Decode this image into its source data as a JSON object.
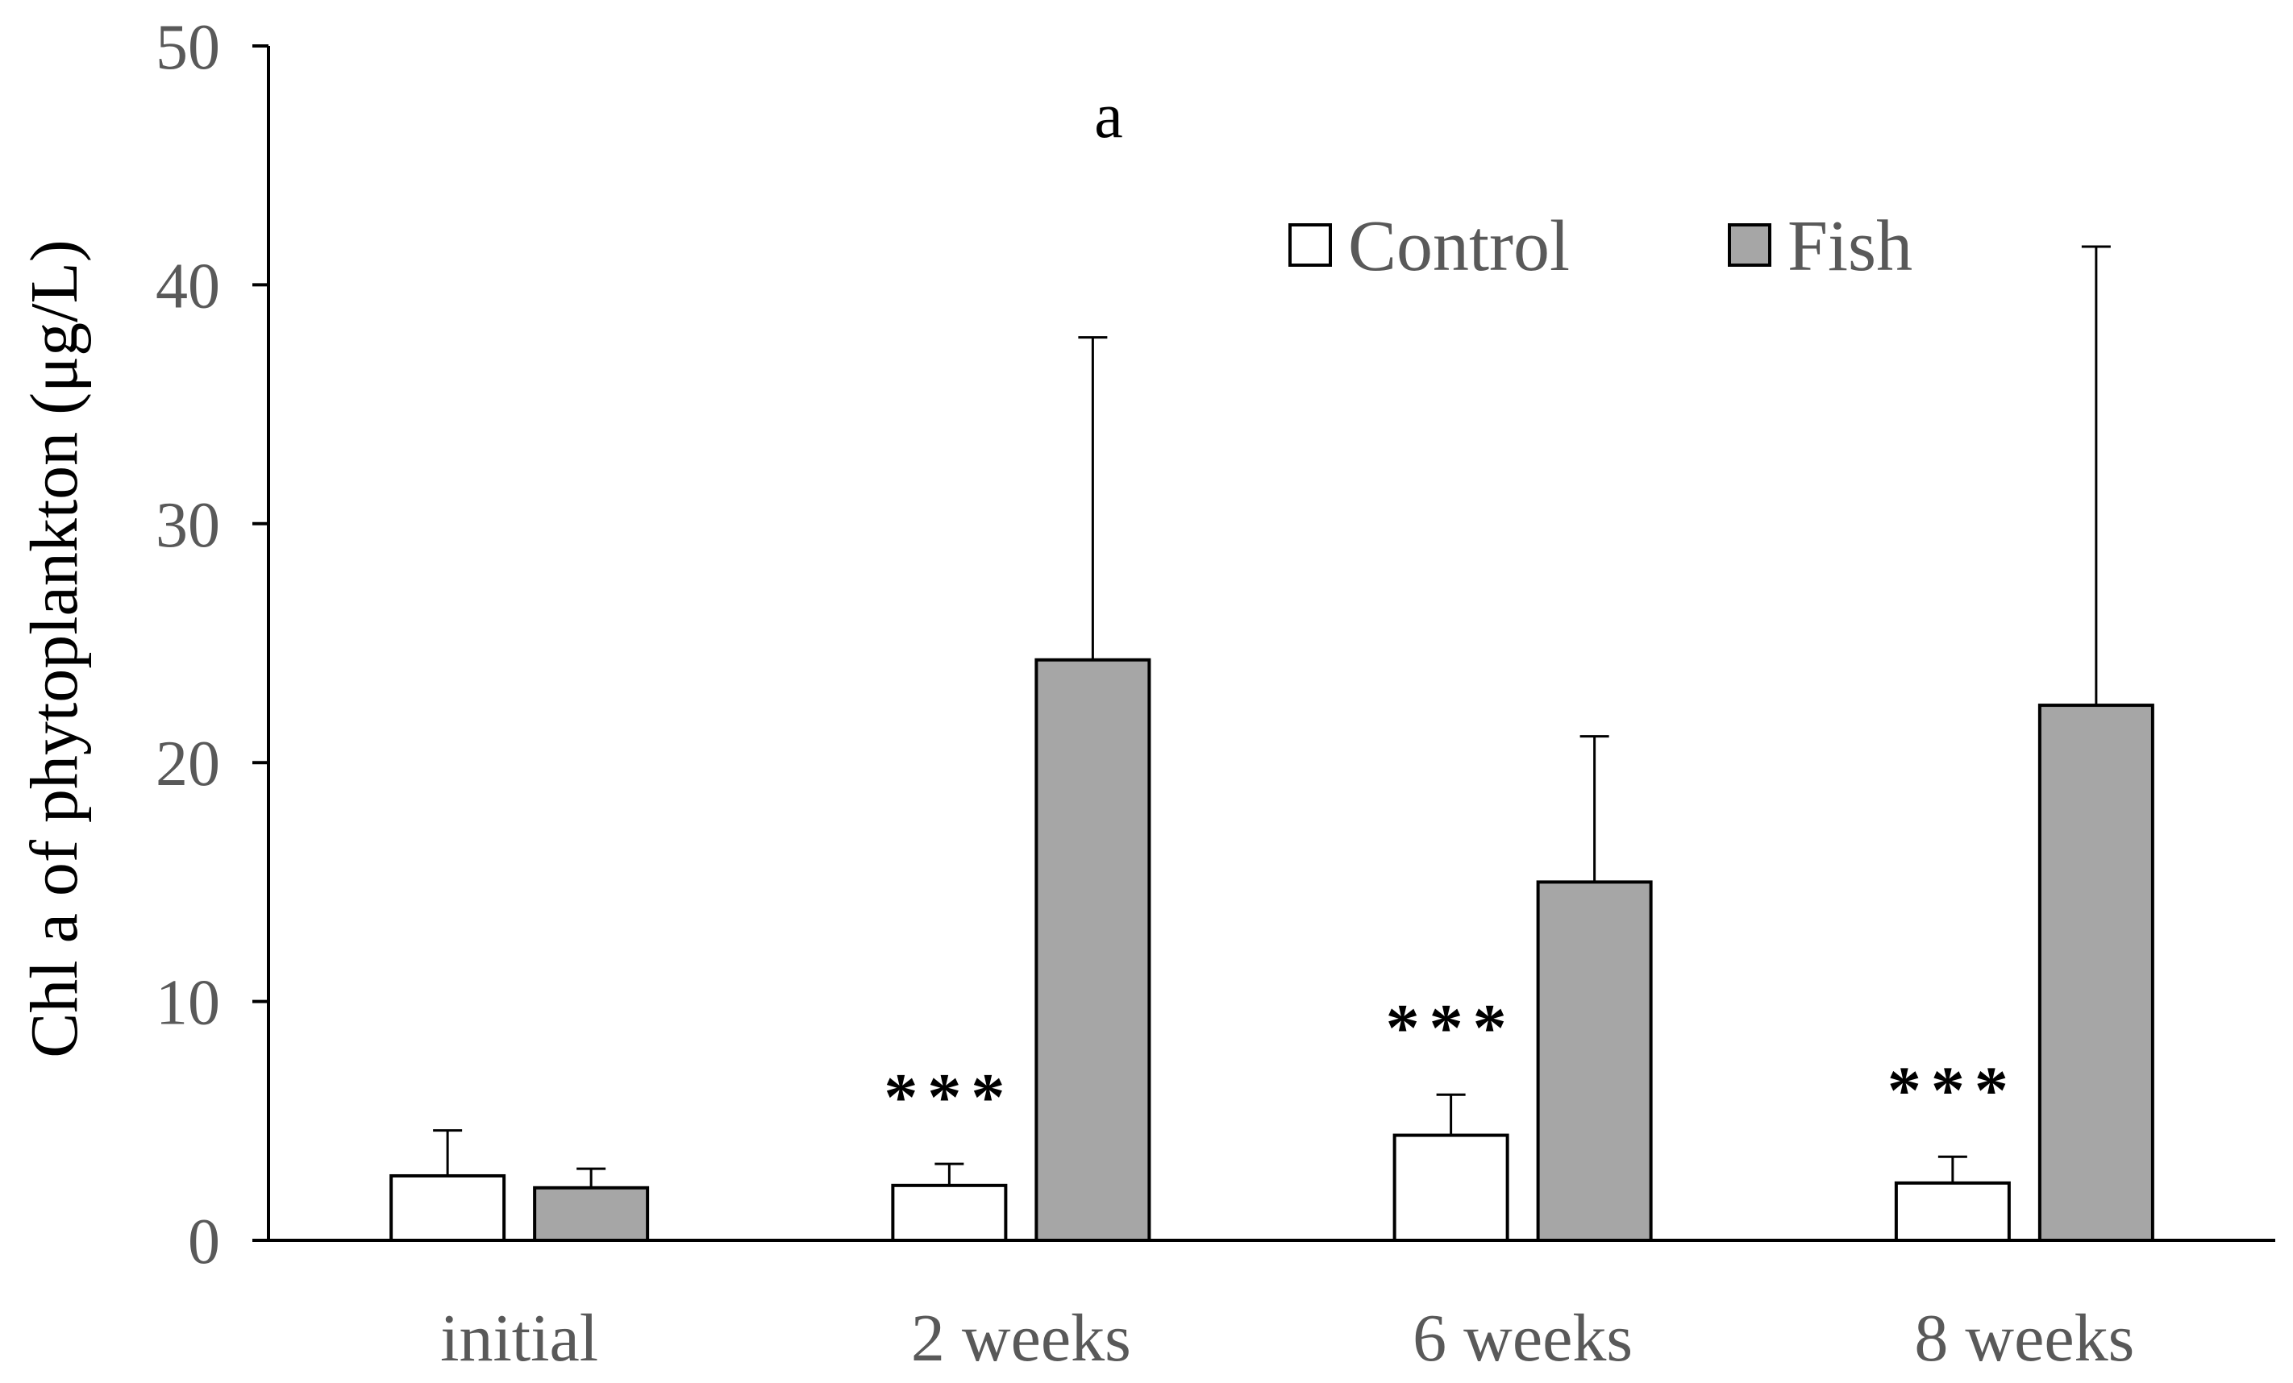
{
  "chart_data": {
    "type": "bar",
    "panel_label": "a",
    "ylabel": "Chl a of phytoplankton (μg/L)",
    "xlabel": "",
    "ylim": [
      0,
      50
    ],
    "yticks": [
      "0",
      "10",
      "20",
      "30",
      "40",
      "50"
    ],
    "ytick_values": [
      0,
      10,
      20,
      30,
      40,
      50
    ],
    "categories": [
      "initial",
      "2 weeks",
      "6 weeks",
      "8 weeks"
    ],
    "series": [
      {
        "name": "Control",
        "color": "#ffffff",
        "values": [
          2.7,
          2.3,
          4.4,
          2.4
        ],
        "errors": [
          1.9,
          0.9,
          1.7,
          1.1
        ]
      },
      {
        "name": "Fish",
        "color": "#a6a6a6",
        "values": [
          2.2,
          24.3,
          15.0,
          22.4
        ],
        "errors": [
          0.8,
          13.5,
          6.1,
          19.2
        ]
      }
    ],
    "significance": [
      "",
      "***",
      "***",
      "***"
    ],
    "legend_position": "top-right",
    "grid": false
  }
}
